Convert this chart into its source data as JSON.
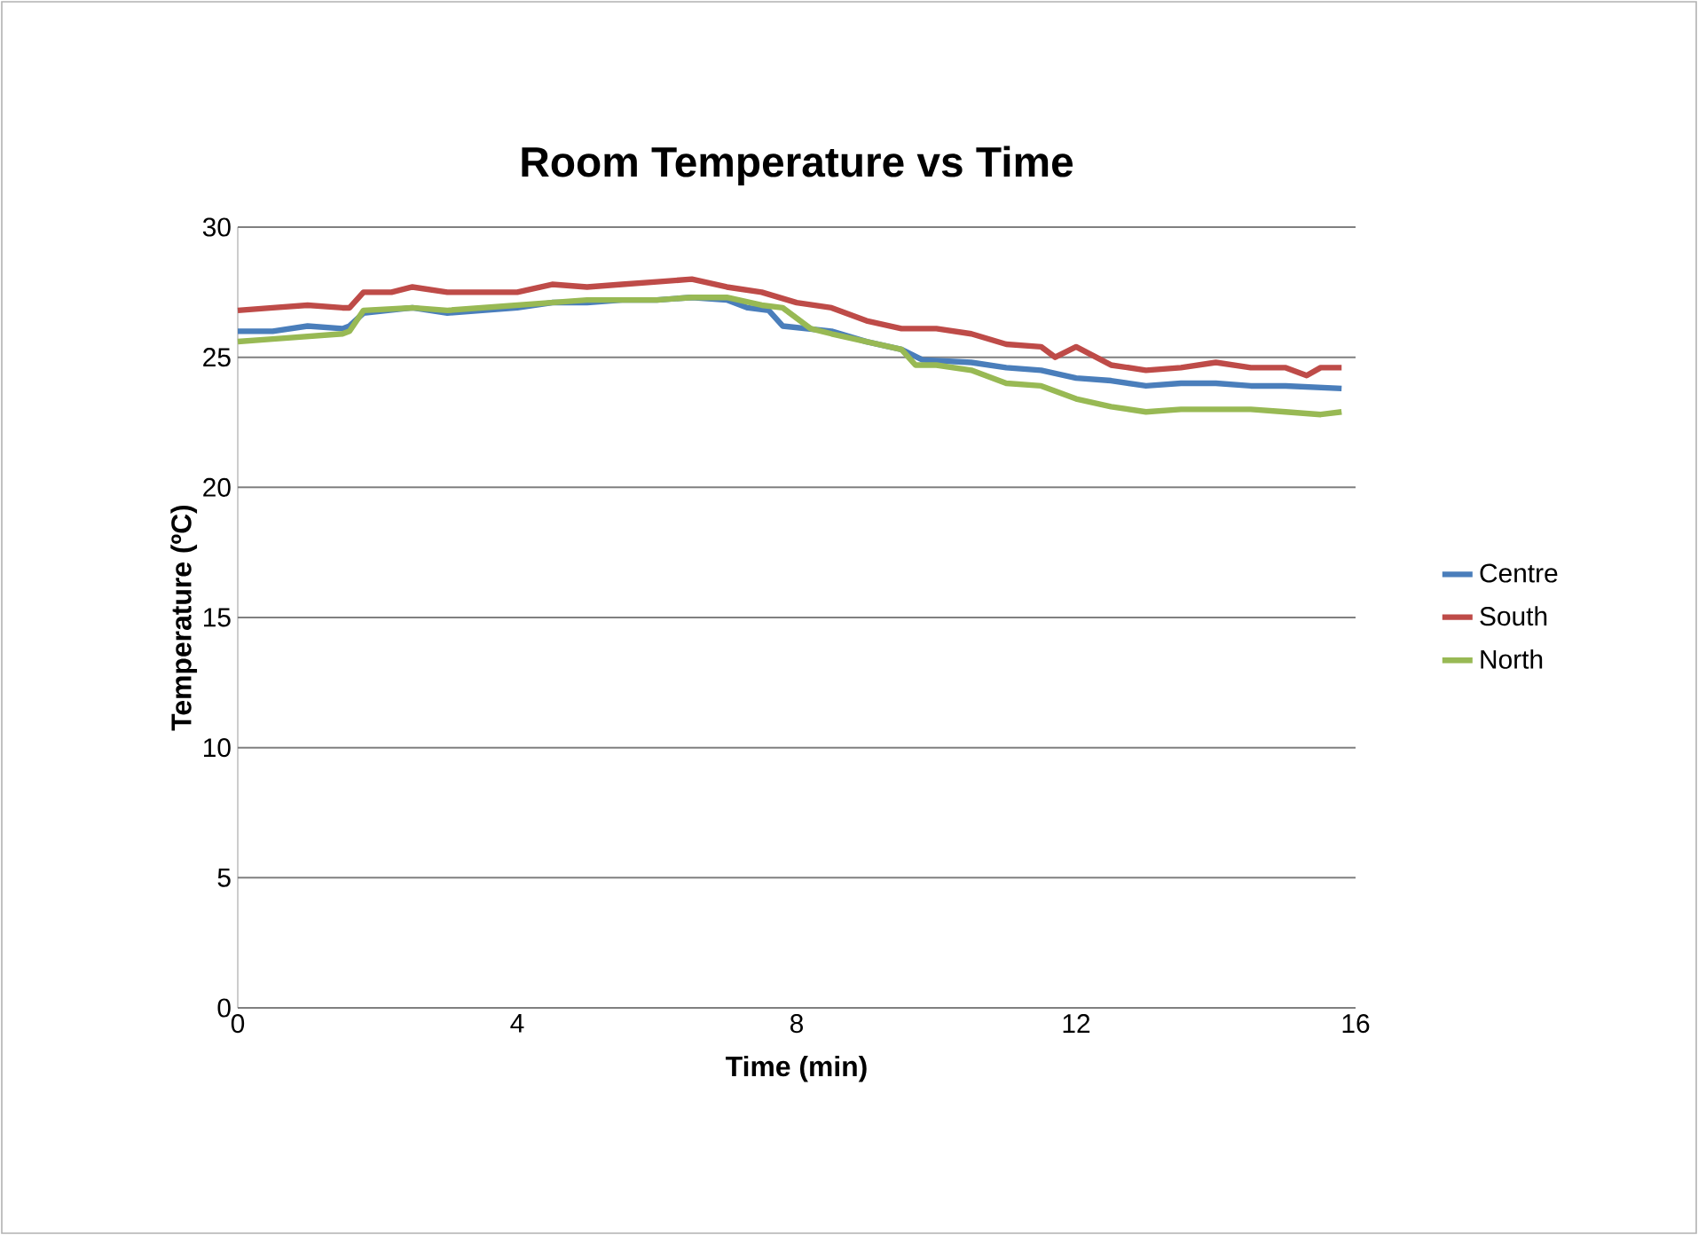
{
  "chart_data": {
    "type": "line",
    "title": "Room Temperature vs Time",
    "xlabel": "Time (min)",
    "ylabel": "Temperature (ºC)",
    "xlim": [
      0,
      16
    ],
    "xticks": [
      0,
      4,
      8,
      12,
      16
    ],
    "ylim": [
      0,
      30
    ],
    "yticks": [
      0,
      5,
      10,
      15,
      20,
      25,
      30
    ],
    "grid": "y",
    "legend": "right",
    "marker": "none",
    "line_style": "solid",
    "series": [
      {
        "name": "Centre",
        "color": "#4a7ebb",
        "x": [
          0,
          0.5,
          1,
          1.5,
          1.6,
          1.8,
          2.5,
          3,
          3.5,
          4,
          4.5,
          5,
          5.5,
          6,
          6.5,
          7,
          7.3,
          7.6,
          7.8,
          8.5,
          9,
          9.5,
          9.8,
          10.5,
          11,
          11.5,
          12,
          12.5,
          13,
          13.5,
          14,
          14.5,
          15,
          15.8
        ],
        "values": [
          26.0,
          26.0,
          26.2,
          26.1,
          26.2,
          26.7,
          26.9,
          26.7,
          26.8,
          26.9,
          27.1,
          27.1,
          27.2,
          27.2,
          27.3,
          27.2,
          26.9,
          26.8,
          26.2,
          26.0,
          25.6,
          25.3,
          24.9,
          24.8,
          24.6,
          24.5,
          24.2,
          24.1,
          23.9,
          24.0,
          24.0,
          23.9,
          23.9,
          23.8
        ]
      },
      {
        "name": "South",
        "color": "#be4b48",
        "x": [
          0,
          0.5,
          1,
          1.5,
          1.6,
          1.8,
          2.2,
          2.5,
          3,
          3.5,
          4,
          4.5,
          5,
          5.5,
          6,
          6.5,
          7,
          7.5,
          8,
          8.5,
          9,
          9.5,
          10,
          10.5,
          11,
          11.5,
          11.7,
          12,
          12.5,
          13,
          13.5,
          14,
          14.5,
          15,
          15.3,
          15.5,
          15.8
        ],
        "values": [
          26.8,
          26.9,
          27.0,
          26.9,
          26.9,
          27.5,
          27.5,
          27.7,
          27.5,
          27.5,
          27.5,
          27.8,
          27.7,
          27.8,
          27.9,
          28.0,
          27.7,
          27.5,
          27.1,
          26.9,
          26.4,
          26.1,
          26.1,
          25.9,
          25.5,
          25.4,
          25.0,
          25.4,
          24.7,
          24.5,
          24.6,
          24.8,
          24.6,
          24.6,
          24.3,
          24.6,
          24.6
        ]
      },
      {
        "name": "North",
        "color": "#98b954",
        "x": [
          0,
          0.5,
          1,
          1.5,
          1.6,
          1.8,
          2.5,
          3,
          4,
          5,
          6,
          6.5,
          7,
          7.5,
          7.8,
          8.2,
          8.5,
          9,
          9.5,
          9.7,
          10,
          10.5,
          11,
          11.5,
          12,
          12.5,
          13,
          13.5,
          14,
          14.5,
          15,
          15.5,
          15.8
        ],
        "values": [
          25.6,
          25.7,
          25.8,
          25.9,
          26.0,
          26.8,
          26.9,
          26.8,
          27.0,
          27.2,
          27.2,
          27.3,
          27.3,
          27.0,
          26.9,
          26.1,
          25.9,
          25.6,
          25.3,
          24.7,
          24.7,
          24.5,
          24.0,
          23.9,
          23.4,
          23.1,
          22.9,
          23.0,
          23.0,
          23.0,
          22.9,
          22.8,
          22.9
        ]
      }
    ]
  }
}
